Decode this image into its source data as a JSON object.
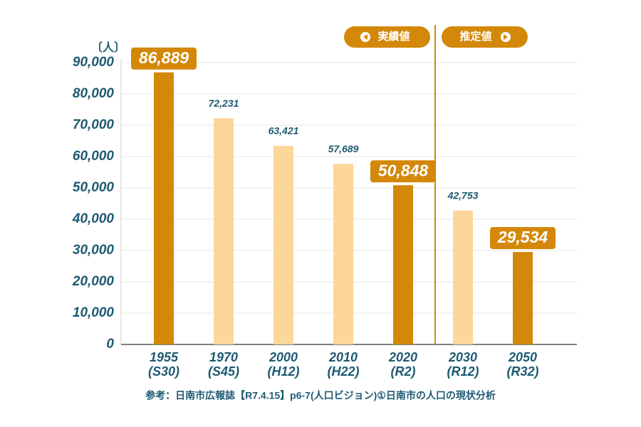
{
  "chart_data": {
    "type": "bar",
    "unit_label": "〔人〕",
    "categories": [
      "1955",
      "1970",
      "2000",
      "2010",
      "2020",
      "2030",
      "2050"
    ],
    "category_sublabels": [
      "(S30)",
      "(S45)",
      "(H12)",
      "(H22)",
      "(R2)",
      "(R12)",
      "(R32)"
    ],
    "values": [
      86889,
      72231,
      63421,
      57689,
      50848,
      42753,
      29534
    ],
    "value_labels": [
      "86,889",
      "72,231",
      "63,421",
      "57,689",
      "50,848",
      "42,753",
      "29,534"
    ],
    "colors": [
      "#d4880a",
      "#fdd69a",
      "#fdd69a",
      "#fdd69a",
      "#d4880a",
      "#fdd69a",
      "#d4880a"
    ],
    "highlighted": [
      true,
      false,
      false,
      false,
      true,
      false,
      true
    ],
    "ylim": [
      0,
      90000
    ],
    "yticks": [
      0,
      {
        "value": 10000,
        "label": "10,000"
      },
      {
        "value": 20000,
        "label": "20,000"
      },
      {
        "value": 30000,
        "label": "30,000"
      },
      {
        "value": 40000,
        "label": "40,000"
      },
      {
        "value": 50000,
        "label": "50,000"
      },
      {
        "value": 60000,
        "label": "60,000"
      },
      {
        "value": 70000,
        "label": "70,000"
      },
      {
        "value": 80000,
        "label": "80,000"
      },
      {
        "value": 90000,
        "label": "90,000"
      }
    ],
    "grid": true,
    "divider_after": 4,
    "period_labels": {
      "actual": "実績値",
      "forecast": "推定値"
    },
    "source": "参考：日南市広報誌【R7.4.15】p6-7(人口ビジョン)①日南市の人口の現状分析"
  }
}
